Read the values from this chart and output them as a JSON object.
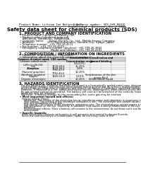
{
  "header_left": "Product Name: Lithium Ion Battery Cell",
  "header_right_line1": "Substance number: SDS-049-00016",
  "header_right_line2": "Established / Revision: Dec.7.2016",
  "title": "Safety data sheet for chemical products (SDS)",
  "section1_title": "1. PRODUCT AND COMPANY IDENTIFICATION",
  "section1_items": [
    "• Product name: Lithium Ion Battery Cell",
    "• Product code: Cylindrical-type cell",
    "   INR18650J, INR18650L, INR18650A",
    "• Company name:      Sanyo Electric Co., Ltd., Mobile Energy Company",
    "• Address:               2001 Kamitakamatsu, Sumoto-City, Hyogo, Japan",
    "• Telephone number:  +81-799-26-4111",
    "• Fax number:  +81-799-26-4129",
    "• Emergency telephone number (daytime): +81-799-26-3842",
    "                                   (Night and holiday): +81-799-26-4101"
  ],
  "section2_title": "2. COMPOSITION / INFORMATION ON INGREDIENTS",
  "section2_sub1": "• Substance or preparation: Preparation",
  "section2_sub2": "• Information about the chemical nature of product:",
  "table_cols": [
    "Common chemical name",
    "CAS number",
    "Concentration /\nConcentration range",
    "Classification and\nhazard labeling"
  ],
  "table_rows": [
    [
      "Lithium cobalt oxide\n(LiMn-Co-Ni-O4)",
      "-",
      "(30-60%)",
      "-"
    ],
    [
      "Iron",
      "7439-89-6",
      "15-25%",
      "-"
    ],
    [
      "Aluminum",
      "7429-90-5",
      "2-6%",
      "-"
    ],
    [
      "Graphite\n(Natural graphite)\n(Artificial graphite)",
      "7782-42-5\n7782-44-0",
      "10-25%",
      "-"
    ],
    [
      "Copper",
      "7440-50-8",
      "5-15%",
      "Sensitization of the skin\ngroup No.2"
    ],
    [
      "Organic electrolyte",
      "-",
      "10-25%",
      "Inflammable liquid"
    ]
  ],
  "section3_title": "3. HAZARDS IDENTIFICATION",
  "section3_para1": [
    "For the battery cell, chemical materials are stored in a hermetically sealed metal case, designed to withstand",
    "temperature changes and pressure-encountered during normal use. As a result, during normal-use, there is no",
    "physical danger of ignition or explosion and there is no danger of hazardous materials leakage.",
    "However, if exposed to a fire, added mechanical shocks, decomposed, when electro-shorts occur may cause.",
    "By gas release cannot be operated. The battery cell case will be breached of the cathode, hazardous",
    "materials may be released.",
    "Moreover, if heated strongly by the surrounding fire, some gas may be emitted."
  ],
  "section3_bullet1": "• Most important hazard and effects:",
  "section3_sub1": "Human health effects:",
  "section3_sub1_items": [
    "Inhalation: The release of the electrolyte has an anesthesia action and stimulates in respiratory tract.",
    "Skin contact: The release of the electrolyte stimulates a skin. The electrolyte skin contact causes a",
    "sore and stimulation on the skin.",
    "Eye contact: The release of the electrolyte stimulates eyes. The electrolyte eye contact causes a sore",
    "and stimulation on the eye. Especially, a substance that causes a strong inflammation of the eye is",
    "contained.",
    "Environmental effects: Since a battery cell remains in the environment, do not throw out it into the",
    "environment."
  ],
  "section3_bullet2": "• Specific hazards:",
  "section3_specific": [
    "If the electrolyte contacts with water, it will generate detrimental hydrogen fluoride.",
    "Since the seal electrolyte is inflammable liquid, do not bring close to fire."
  ],
  "bg_color": "#ffffff",
  "text_color": "#000000",
  "line_color": "#000000",
  "table_line_color": "#999999",
  "header_bg": "#e8e8e8"
}
